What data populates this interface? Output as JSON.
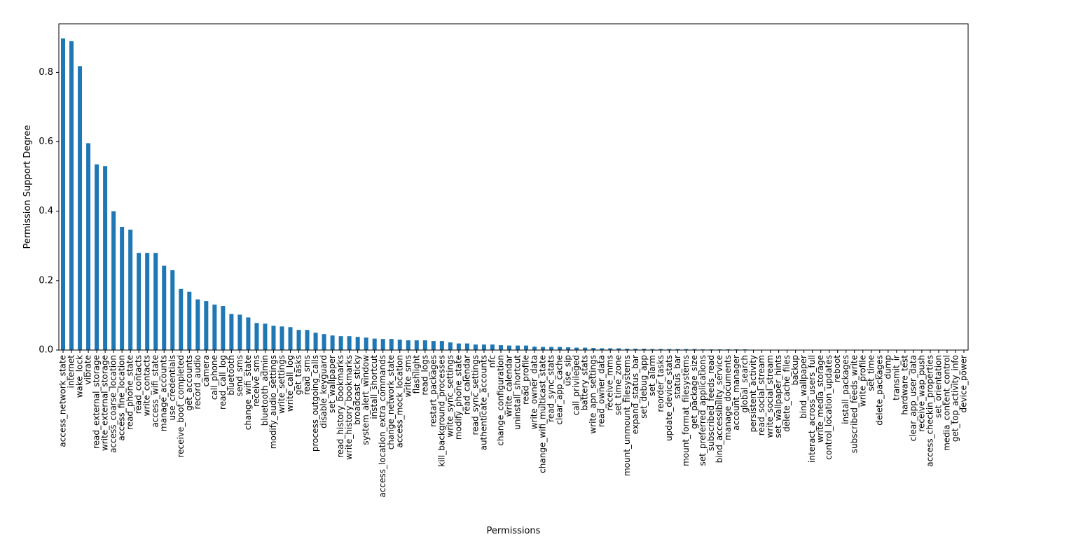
{
  "chart_data": {
    "type": "bar",
    "title": "",
    "xlabel": "Permissions",
    "ylabel": "Permission Support Degree",
    "ylim": [
      0,
      0.94
    ],
    "yticks": [
      0.0,
      0.2,
      0.4,
      0.6,
      0.8
    ],
    "ytick_labels": [
      "0.0",
      "0.2",
      "0.4",
      "0.6",
      "0.8"
    ],
    "bar_color": "#1f77b4",
    "grid": false,
    "legend": "none",
    "categories": [
      "access_network_state",
      "internet",
      "wake_lock",
      "vibrate",
      "read_external_storage",
      "write_external_storage",
      "access_coarse_location",
      "access_fine_location",
      "read_phone_state",
      "read_contacts",
      "write_contacts",
      "access_wifi_state",
      "manage_accounts",
      "use_credentials",
      "receive_boot_completed",
      "get_accounts",
      "record_audio",
      "camera",
      "call_phone",
      "read_call_log",
      "bluetooth",
      "send_sms",
      "change_wifi_state",
      "receive_sms",
      "bluetooth_admin",
      "modify_audio_settings",
      "write_settings",
      "write_call_log",
      "get_tasks",
      "read_sms",
      "process_outgoing_calls",
      "disable_keyguard",
      "set_wallpaper",
      "read_history_bookmarks",
      "write_history_bookmarks",
      "broadcast_sticky",
      "system_alert_window",
      "install_shortcut",
      "access_location_extra_commands",
      "change_network_state",
      "access_mock_location",
      "write_sms",
      "flashlight",
      "read_logs",
      "restart_packages",
      "kill_background_processes",
      "write_sync_settings",
      "modify_phone_state",
      "read_calendar",
      "read_sync_settings",
      "authenticate_accounts",
      "nfc",
      "change_configuration",
      "write_calendar",
      "uninstall_shortcut",
      "read_profile",
      "write_owner_data",
      "change_wifi_multicast_state",
      "read_sync_stats",
      "clear_app_cache",
      "use_sip",
      "call_privileged",
      "battery_stats",
      "write_apn_settings",
      "read_owner_data",
      "receive_mms",
      "set_time_zone",
      "mount_unmount_filesystems",
      "expand_status_bar",
      "set_debug_app",
      "set_alarm",
      "reorder_tasks",
      "update_device_stats",
      "status_bar",
      "mount_format_filesystems",
      "get_package_size",
      "set_preferred_applications",
      "subscribed_feeds_read",
      "bind_accessibility_service",
      "manage_documents",
      "account_manager",
      "global_search",
      "persistent_activity",
      "read_social_stream",
      "write_social_stream",
      "set_wallpaper_hints",
      "delete_cache_files",
      "backup",
      "bind_wallpaper",
      "interact_across_users_full",
      "write_media_storage",
      "control_location_updates",
      "reboot",
      "install_packages",
      "subscribed_feeds_write",
      "write_profile",
      "set_time",
      "delete_packages",
      "dump",
      "transmit_ir",
      "hardware_test",
      "clear_app_user_data",
      "receive_wap_push",
      "access_checkin_properties",
      "set_orientation",
      "media_content_control",
      "get_top_activity_info",
      "device_power"
    ],
    "values": [
      0.898,
      0.89,
      0.818,
      0.596,
      0.535,
      0.53,
      0.4,
      0.355,
      0.347,
      0.28,
      0.28,
      0.28,
      0.243,
      0.23,
      0.176,
      0.168,
      0.146,
      0.141,
      0.131,
      0.127,
      0.104,
      0.102,
      0.094,
      0.078,
      0.076,
      0.07,
      0.068,
      0.066,
      0.058,
      0.058,
      0.05,
      0.046,
      0.042,
      0.04,
      0.04,
      0.038,
      0.036,
      0.033,
      0.032,
      0.032,
      0.03,
      0.028,
      0.028,
      0.028,
      0.026,
      0.026,
      0.022,
      0.019,
      0.019,
      0.016,
      0.016,
      0.016,
      0.014,
      0.013,
      0.013,
      0.013,
      0.01,
      0.009,
      0.009,
      0.009,
      0.008,
      0.007,
      0.007,
      0.006,
      0.005,
      0.005,
      0.005,
      0.004,
      0.004,
      0.004,
      0.003,
      0.003,
      0.003,
      0.003,
      0.003,
      0.003,
      0.002,
      0.002,
      0.002,
      0.002,
      0.002,
      0.002,
      0.001,
      0.001,
      0.001,
      0.001,
      0.001,
      0.001,
      0.001,
      0.001,
      0.001,
      0.001,
      0.001,
      0.001,
      0.001,
      0.001,
      0.001,
      0.001,
      0.001,
      0.001,
      0.001,
      0.001,
      0.001,
      0.001,
      0.001,
      0.001,
      0.001,
      0.001
    ]
  }
}
